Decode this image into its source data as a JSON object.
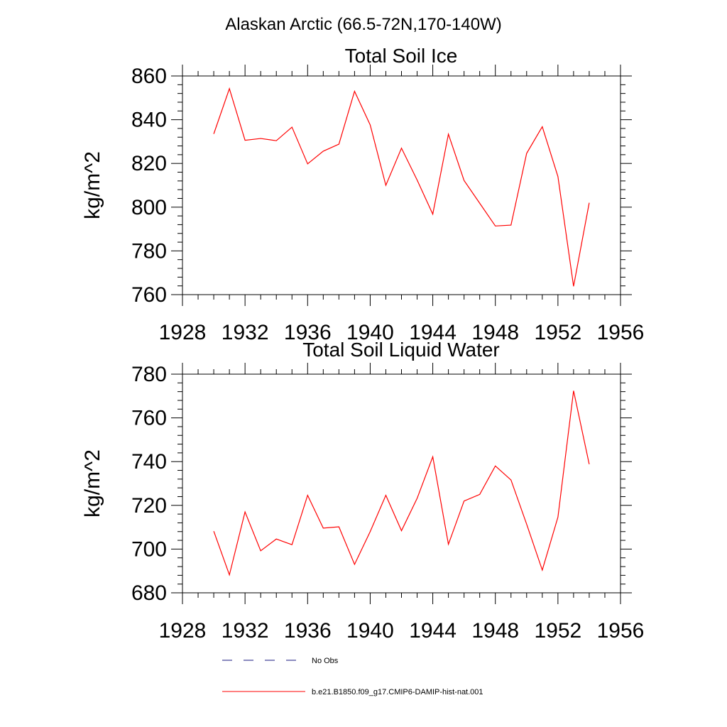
{
  "figure": {
    "title": "Alaskan Arctic (66.5-72N,170-140W)"
  },
  "chart_data": [
    {
      "type": "line",
      "title": "Total Soil Ice",
      "xlabel": "",
      "ylabel": "kg/m^2",
      "xlim": [
        1928,
        1956
      ],
      "ylim": [
        760,
        860
      ],
      "xticks": [
        1928,
        1932,
        1936,
        1940,
        1944,
        1948,
        1952,
        1956
      ],
      "yticks": [
        760,
        780,
        800,
        820,
        840,
        860
      ],
      "x": [
        1930,
        1931,
        1932,
        1933,
        1934,
        1935,
        1936,
        1937,
        1938,
        1939,
        1940,
        1941,
        1942,
        1943,
        1944,
        1945,
        1946,
        1947,
        1948,
        1949,
        1950,
        1951,
        1952,
        1953,
        1954
      ],
      "series": [
        {
          "name": "b.e21.B1850.f09_g17.CMIP6-DAMIP-hist-nat.001",
          "color": "#ff0000",
          "values": [
            833.5,
            854.2,
            830.6,
            831.4,
            830.4,
            836.6,
            819.8,
            825.6,
            828.8,
            853.0,
            837.6,
            810.0,
            827.0,
            812.4,
            796.8,
            833.4,
            812.2,
            801.8,
            791.4,
            791.8,
            824.6,
            836.8,
            814.0,
            763.8,
            802.0
          ]
        }
      ]
    },
    {
      "type": "line",
      "title": "Total Soil Liquid Water",
      "xlabel": "",
      "ylabel": "kg/m^2",
      "xlim": [
        1928,
        1956
      ],
      "ylim": [
        680,
        780
      ],
      "xticks": [
        1928,
        1932,
        1936,
        1940,
        1944,
        1948,
        1952,
        1956
      ],
      "yticks": [
        680,
        700,
        720,
        740,
        760,
        780
      ],
      "x": [
        1930,
        1931,
        1932,
        1933,
        1934,
        1935,
        1936,
        1937,
        1938,
        1939,
        1940,
        1941,
        1942,
        1943,
        1944,
        1945,
        1946,
        1947,
        1948,
        1949,
        1950,
        1951,
        1952,
        1953,
        1954
      ],
      "series": [
        {
          "name": "b.e21.B1850.f09_g17.CMIP6-DAMIP-hist-nat.001",
          "color": "#ff0000",
          "values": [
            708.2,
            688.2,
            717.0,
            699.2,
            704.6,
            702.0,
            724.6,
            709.6,
            710.2,
            693.0,
            708.0,
            724.6,
            708.4,
            723.2,
            742.2,
            702.2,
            722.0,
            725.0,
            738.0,
            731.6,
            711.4,
            690.4,
            714.6,
            772.4,
            738.8
          ]
        }
      ]
    }
  ],
  "legend": {
    "items": [
      {
        "label": "No Obs",
        "color": "#1a1a80",
        "style": "dashed"
      },
      {
        "label": "b.e21.B1850.f09_g17.CMIP6-DAMIP-hist-nat.001",
        "color": "#ff0000",
        "style": "solid"
      }
    ]
  }
}
